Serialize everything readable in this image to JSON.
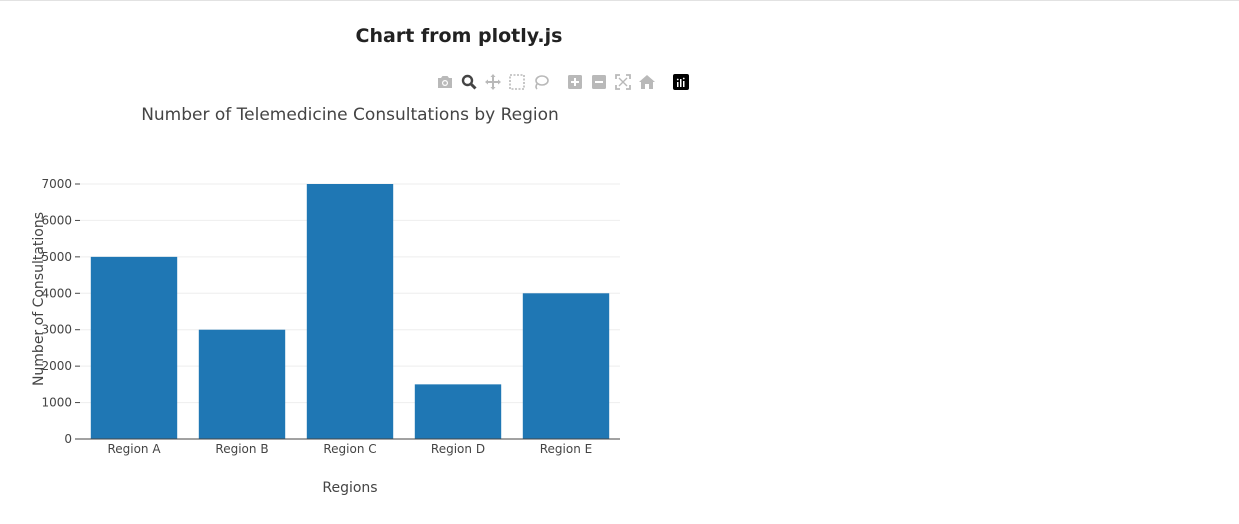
{
  "page": {
    "title": "Chart from plotly.js"
  },
  "modebar": {
    "buttons": [
      {
        "icon": "camera-icon",
        "name": "download-png-button"
      },
      {
        "icon": "zoom-icon",
        "name": "zoom-button",
        "active": true
      },
      {
        "icon": "pan-icon",
        "name": "pan-button"
      },
      {
        "icon": "box-select-icon",
        "name": "box-select-button"
      },
      {
        "icon": "lasso-icon",
        "name": "lasso-select-button"
      },
      {
        "icon": "zoom-in-icon",
        "name": "zoom-in-button"
      },
      {
        "icon": "zoom-out-icon",
        "name": "zoom-out-button"
      },
      {
        "icon": "autoscale-icon",
        "name": "autoscale-button"
      },
      {
        "icon": "home-icon",
        "name": "reset-axes-button"
      },
      {
        "icon": "plotly-logo-icon",
        "name": "plotly-logo-link"
      }
    ]
  },
  "chart_data": {
    "type": "bar",
    "title": "Number of Telemedicine Consultations by Region",
    "xlabel": "Regions",
    "ylabel": "Number of Consultations",
    "categories": [
      "Region A",
      "Region B",
      "Region C",
      "Region D",
      "Region E"
    ],
    "values": [
      5000,
      3000,
      7000,
      1500,
      4000
    ],
    "ylim": [
      0,
      7000
    ],
    "yticks": [
      0,
      1000,
      2000,
      3000,
      4000,
      5000,
      6000,
      7000
    ],
    "grid": true,
    "bar_color": "#1f77b4",
    "legend": "none"
  }
}
